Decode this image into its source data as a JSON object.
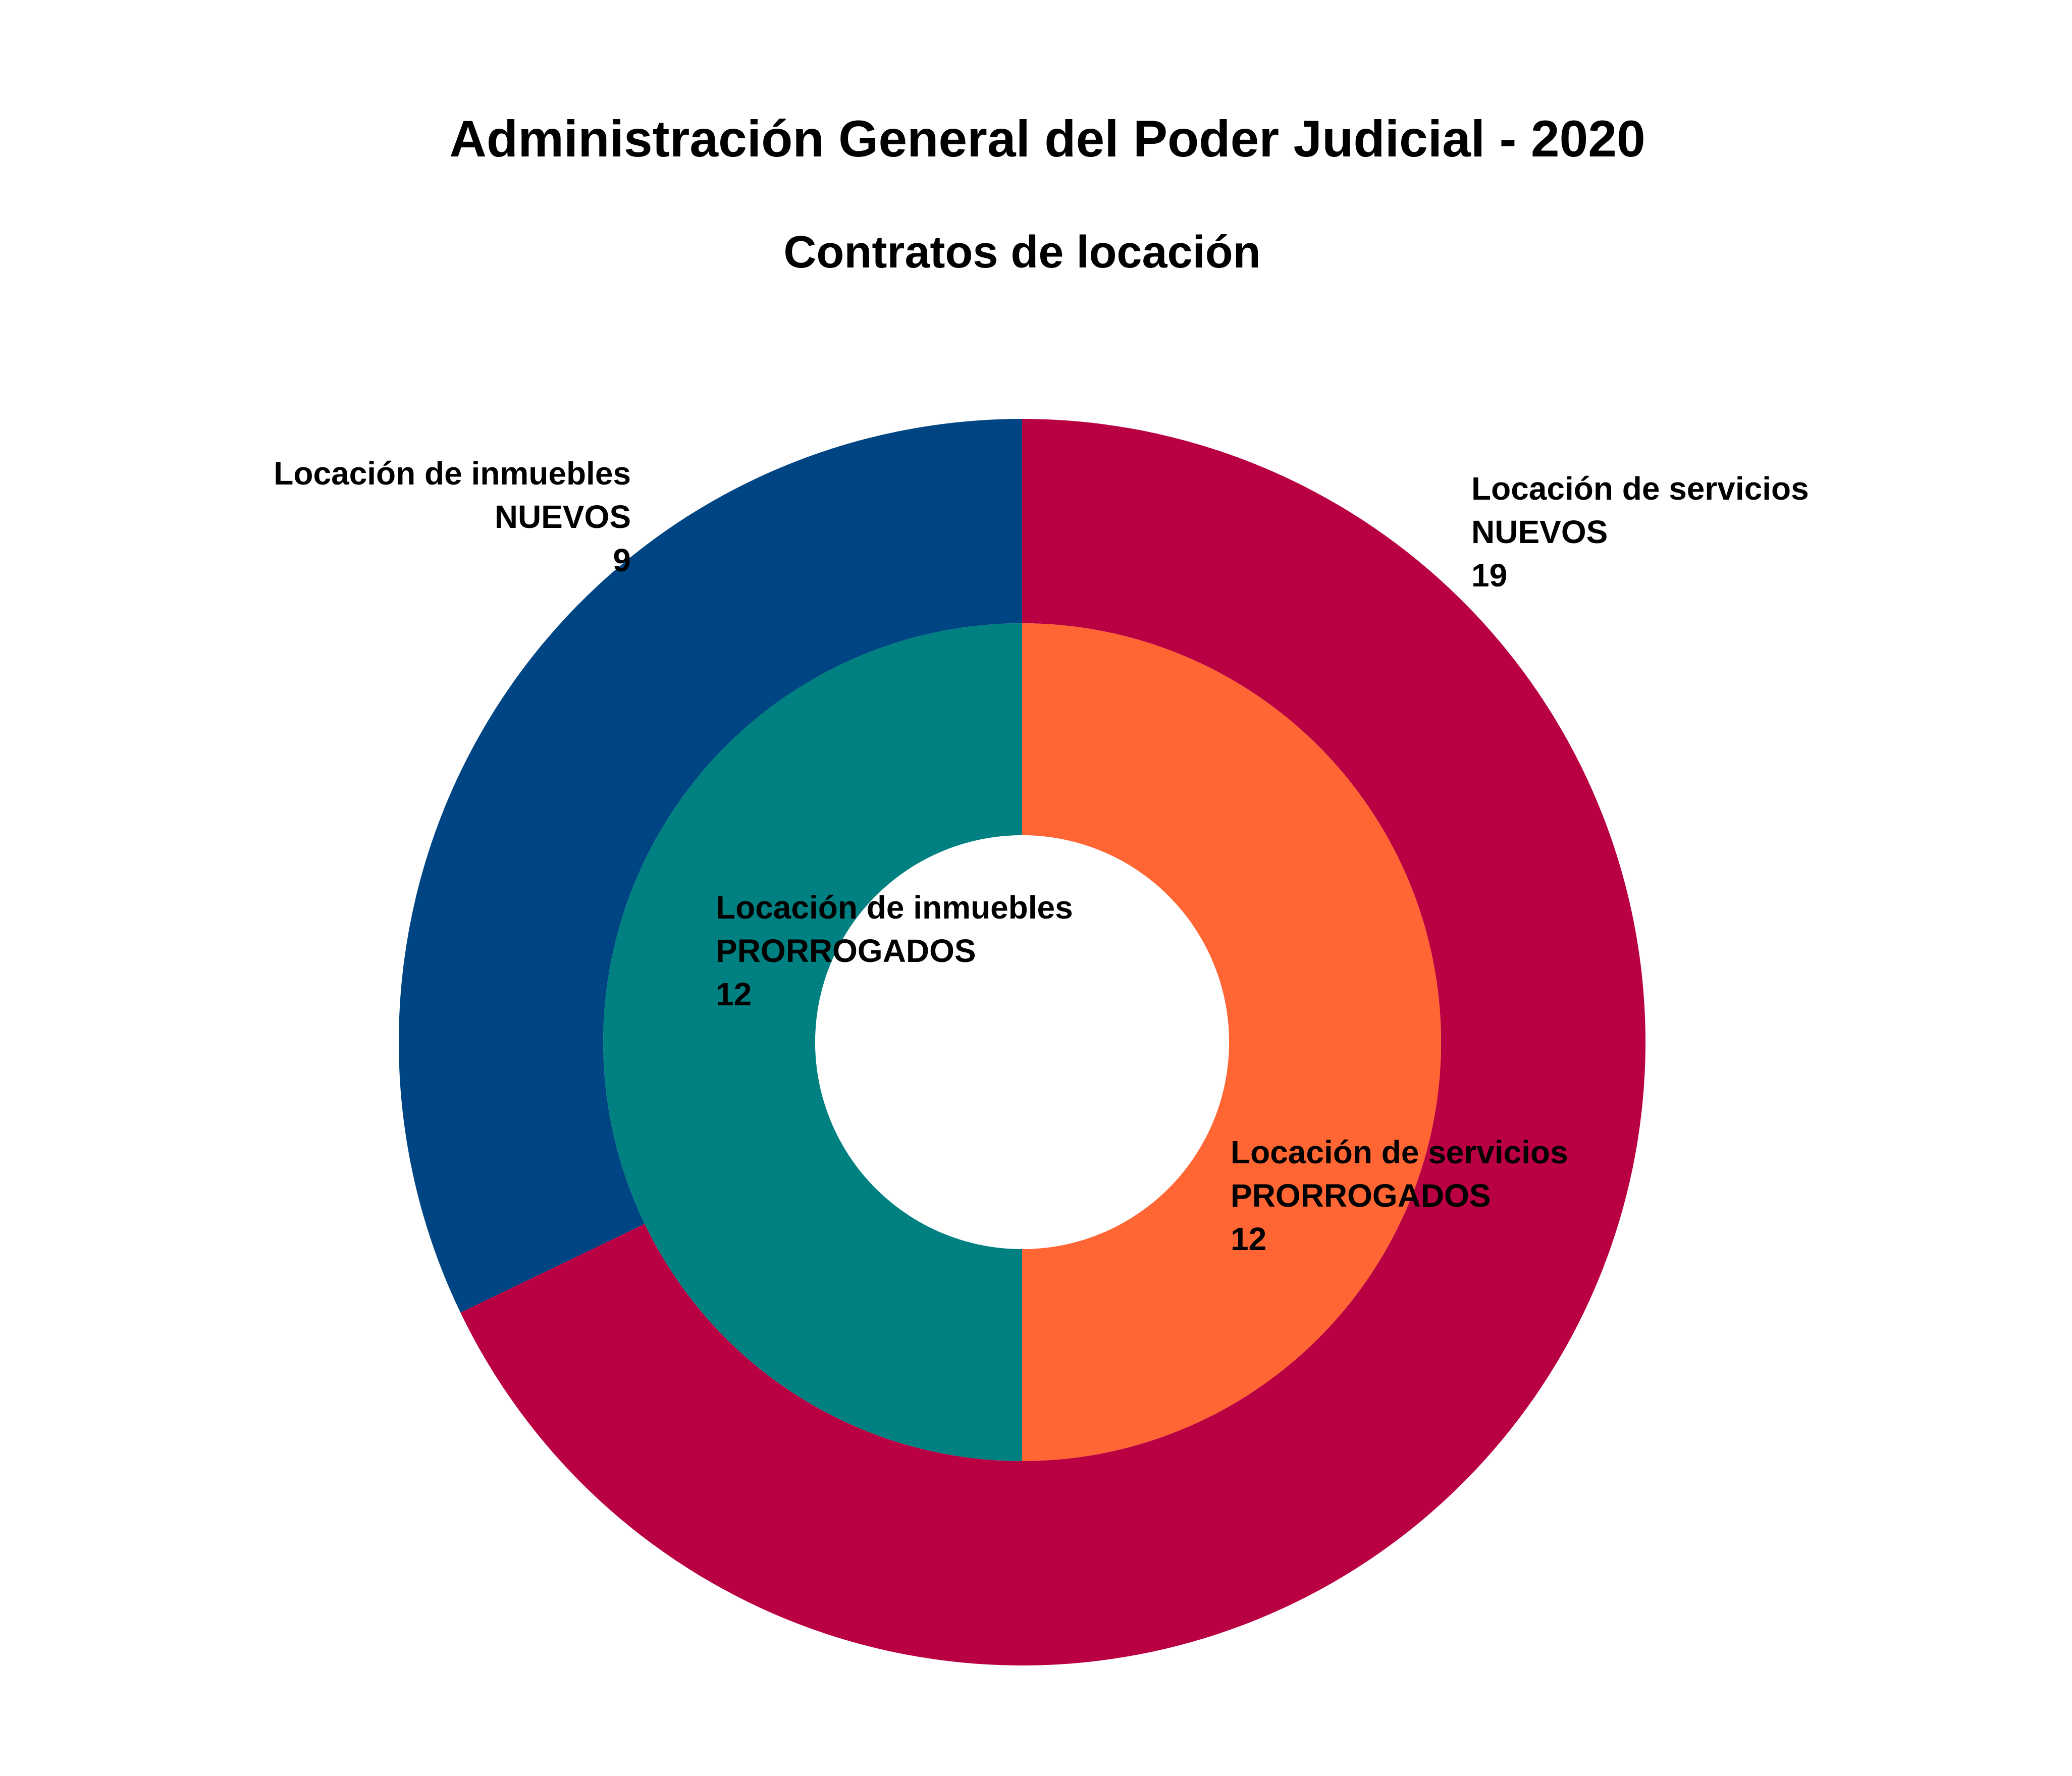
{
  "chart_data": {
    "type": "pie",
    "variant": "nested-donut",
    "title": "Administración General del Poder Judicial - 2020",
    "subtitle": "Contratos de locación",
    "rings": [
      {
        "ring": "outer",
        "slices": [
          {
            "line1": "Locación de inmuebles",
            "line2": "NUEVOS",
            "value": 9,
            "color": "#004583"
          },
          {
            "line1": "Locación de servicios",
            "line2": "NUEVOS",
            "value": 19,
            "color": "#b80043"
          }
        ]
      },
      {
        "ring": "inner",
        "slices": [
          {
            "line1": "Locación de inmuebles",
            "line2": "PRORROGADOS",
            "value": 12,
            "color": "#008080"
          },
          {
            "line1": "Locación de servicios",
            "line2": "PRORROGADOS",
            "value": 12,
            "color": "#ff6633"
          }
        ]
      }
    ]
  }
}
